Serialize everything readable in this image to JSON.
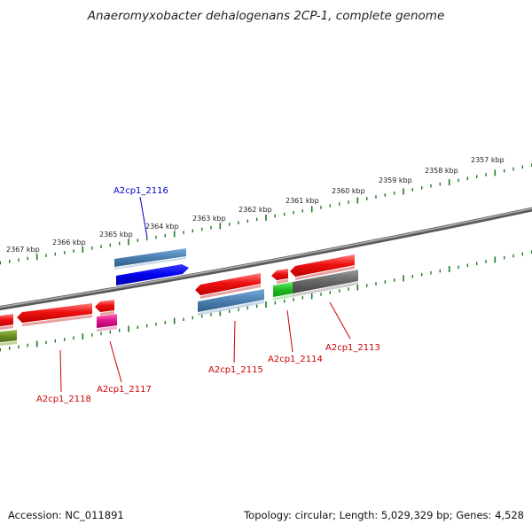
{
  "title": "Anaeromyxobacter dehalogenans 2CP-1, complete genome",
  "ticks": [
    "2367 kbp",
    "2366 kbp",
    "2365 kbp",
    "2364 kbp",
    "2363 kbp",
    "2362 kbp",
    "2361 kbp",
    "2360 kbp",
    "2359 kbp",
    "2358 kbp",
    "2357 kbp"
  ],
  "genes": [
    {
      "name": "A2cp1_2116",
      "color": "#0000cc"
    },
    {
      "name": "A2cp1_2118",
      "color": "#cc0000"
    },
    {
      "name": "A2cp1_2117",
      "color": "#cc0000"
    },
    {
      "name": "A2cp1_2115",
      "color": "#cc0000"
    },
    {
      "name": "A2cp1_2114",
      "color": "#cc0000"
    },
    {
      "name": "A2cp1_2113",
      "color": "#cc0000"
    }
  ],
  "colors": {
    "backbone": "#7a7a7a",
    "ticks": "#1f7a1f",
    "forward": "#ee1111",
    "reverse_blue": "#0000ee",
    "steel": "#4a7fb0",
    "magenta": "#dd1188",
    "green": "#22bb22",
    "olive": "#6b8e23",
    "gray": "#666666"
  },
  "footer": {
    "accession": "Accession: NC_011891",
    "stats": "Topology: circular; Length: 5,029,329 bp; Genes: 4,528"
  }
}
